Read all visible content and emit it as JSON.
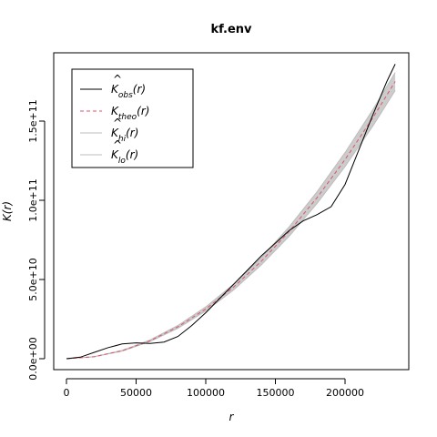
{
  "chart_data": {
    "type": "line",
    "title": "kf.env",
    "xlabel": "r",
    "ylabel": "K(r)",
    "xlim": [
      0,
      236000
    ],
    "ylim": [
      0,
      186000000000
    ],
    "x_ticks": [
      0,
      50000,
      100000,
      150000,
      200000
    ],
    "x_tick_labels": [
      "0",
      "50000",
      "100000",
      "150000",
      "200000"
    ],
    "y_ticks": [
      0,
      50000000000,
      100000000000,
      150000000000
    ],
    "y_tick_labels": [
      "0.0e+00",
      "5.0e+10",
      "1.0e+11",
      "1.5e+11"
    ],
    "grid": false,
    "legend_position": "top-left",
    "colors": {
      "obs": "#000000",
      "theo": "#df536b",
      "envelope": "#cccccc",
      "hi": "#bdbdbd",
      "lo": "#bdbdbd"
    },
    "legend": [
      {
        "key": "obs",
        "base": "K",
        "hat": true,
        "sub": "obs",
        "arg": "(r)",
        "style": "solid"
      },
      {
        "key": "theo",
        "base": "K",
        "hat": false,
        "sub": "theo",
        "arg": "(r)",
        "style": "dashed"
      },
      {
        "key": "hi",
        "base": "K",
        "hat": true,
        "sub": "hi",
        "arg": "(r)",
        "style": "solid"
      },
      {
        "key": "lo",
        "base": "K",
        "hat": true,
        "sub": "lo",
        "arg": "(r)",
        "style": "solid"
      }
    ],
    "series": [
      {
        "name": "obs",
        "x": [
          0,
          10000,
          20000,
          30000,
          40000,
          50000,
          60000,
          70000,
          80000,
          90000,
          100000,
          110000,
          120000,
          130000,
          140000,
          150000,
          160000,
          170000,
          180000,
          190000,
          200000,
          210000,
          220000,
          230000,
          236000
        ],
        "y": [
          0,
          1000000000,
          4000000000,
          7000000000,
          9300000000,
          10000000000,
          9600000000,
          10500000000,
          14000000000,
          21000000000,
          29000000000,
          38000000000,
          47000000000,
          56000000000,
          65000000000,
          73000000000,
          81000000000,
          87000000000,
          91000000000,
          96000000000,
          110000000000,
          132000000000,
          154000000000,
          175000000000,
          186000000000
        ]
      },
      {
        "name": "theo",
        "x": [
          0,
          20000,
          40000,
          60000,
          80000,
          100000,
          120000,
          140000,
          160000,
          180000,
          200000,
          220000,
          236000
        ],
        "y": [
          0,
          1260000000,
          5030000000,
          11300000000,
          20100000000,
          31400000000,
          45200000000,
          61600000000,
          80400000000,
          101800000000,
          125700000000,
          152100000000,
          175000000000
        ]
      },
      {
        "name": "hi",
        "x": [
          0,
          20000,
          40000,
          60000,
          80000,
          100000,
          120000,
          140000,
          160000,
          180000,
          200000,
          220000,
          236000
        ],
        "y": [
          0,
          1320000000,
          5250000000,
          11800000000,
          21000000000,
          32700000000,
          47000000000,
          63900000000,
          83400000000,
          105500000000,
          130100000000,
          157300000000,
          180700000000
        ]
      },
      {
        "name": "lo",
        "x": [
          0,
          20000,
          40000,
          60000,
          80000,
          100000,
          120000,
          140000,
          160000,
          180000,
          200000,
          220000,
          236000
        ],
        "y": [
          0,
          1200000000,
          4810000000,
          10800000000,
          19200000000,
          30100000000,
          43400000000,
          59300000000,
          77400000000,
          98100000000,
          121300000000,
          146900000000,
          169300000000
        ]
      }
    ]
  }
}
